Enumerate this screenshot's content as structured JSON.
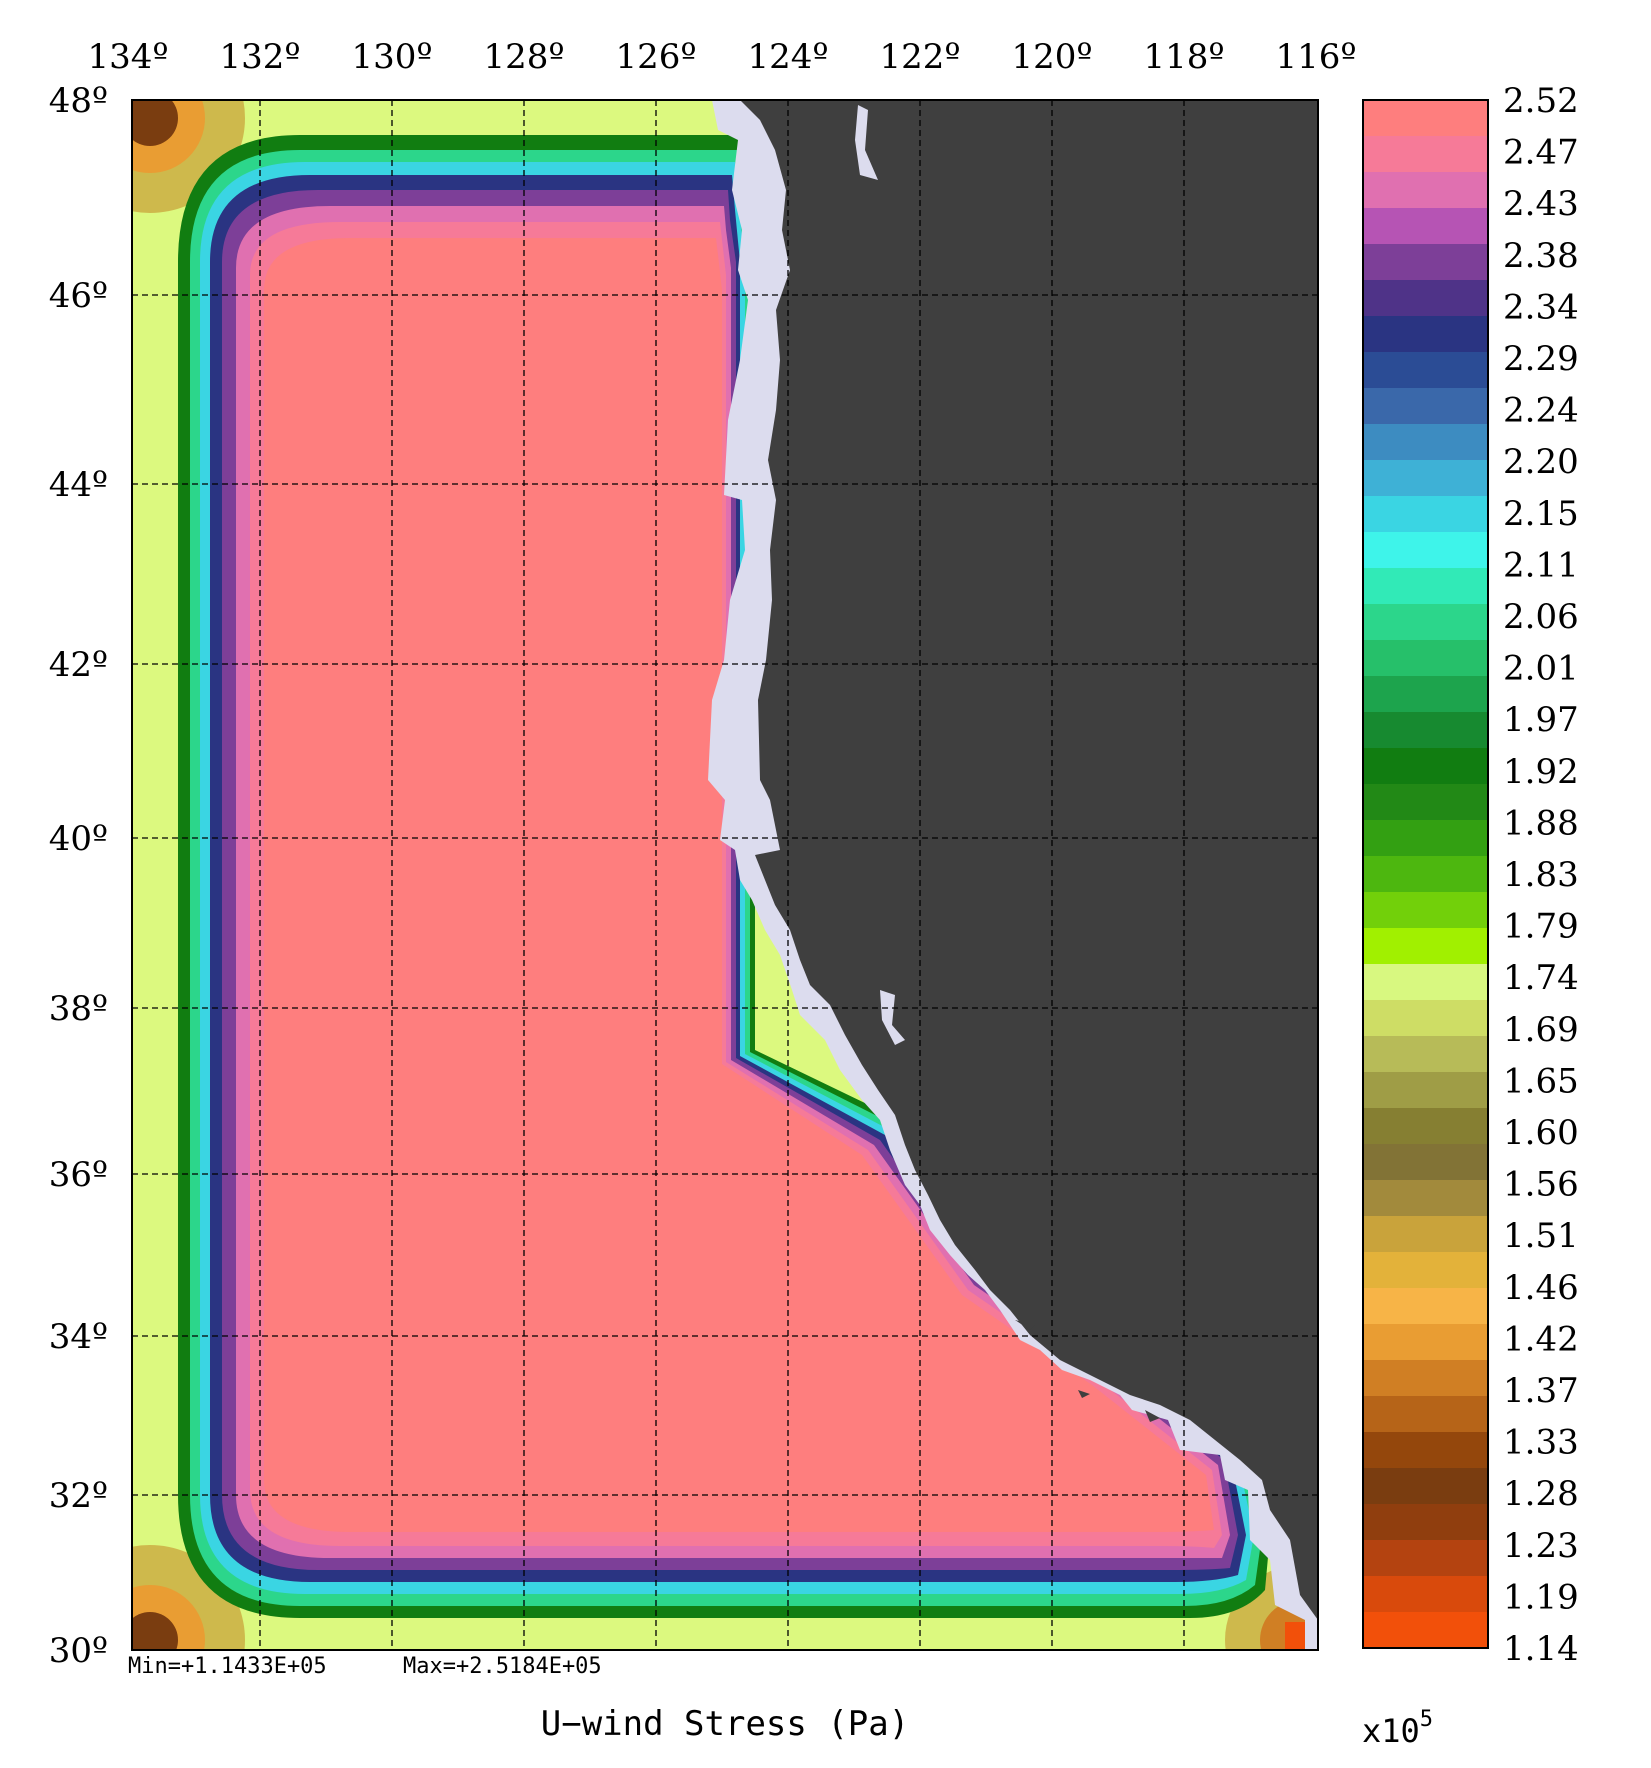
{
  "title": "U−wind Stress (Pa)",
  "stats": {
    "min": "Min=+1.1433E+05",
    "max": "Max=+2.5184E+05"
  },
  "multiplier": {
    "base": "x10",
    "exponent": "5"
  },
  "longitude_ticks": [
    "134º",
    "132º",
    "130º",
    "128º",
    "126º",
    "124º",
    "122º",
    "120º",
    "118º",
    "116º"
  ],
  "latitude_ticks": [
    "48º",
    "46º",
    "44º",
    "42º",
    "40º",
    "38º",
    "36º",
    "34º",
    "32º",
    "30º"
  ],
  "colorbar_labels": [
    "2.52",
    "2.47",
    "2.43",
    "2.38",
    "2.34",
    "2.29",
    "2.24",
    "2.20",
    "2.15",
    "2.11",
    "2.06",
    "2.01",
    "1.97",
    "1.92",
    "1.88",
    "1.83",
    "1.79",
    "1.74",
    "1.69",
    "1.65",
    "1.60",
    "1.56",
    "1.51",
    "1.46",
    "1.42",
    "1.37",
    "1.33",
    "1.28",
    "1.23",
    "1.19",
    "1.14"
  ],
  "colors": {
    "land": "#3f3f3f",
    "coast_mask": "#dcdcee",
    "interior": "#fe7e7e",
    "colorbar_top_to_bottom": [
      "#fe7e7e",
      "#f67a98",
      "#e070b0",
      "#b654b4",
      "#7d3f98",
      "#4f3388",
      "#2a3482",
      "#2b4c95",
      "#3a68aa",
      "#3d8cc1",
      "#3eb1d6",
      "#3ad5e3",
      "#3ef4ea",
      "#31eab7",
      "#2cd68b",
      "#26c06a",
      "#1da44d",
      "#178a30",
      "#117d11",
      "#228916",
      "#33a012",
      "#4db70f",
      "#72d00a",
      "#a1f000",
      "#d8f880",
      "#cedd65",
      "#b7bb58",
      "#9f9d46",
      "#867f32",
      "#827336",
      "#a28a3c",
      "#c9a33b",
      "#e3b23a",
      "#f7b447",
      "#e99d33",
      "#d07f24",
      "#b66418",
      "#94470c",
      "#7a3d10",
      "#903e0e",
      "#b44310",
      "#d94a0c",
      "#f2500a"
    ]
  }
}
